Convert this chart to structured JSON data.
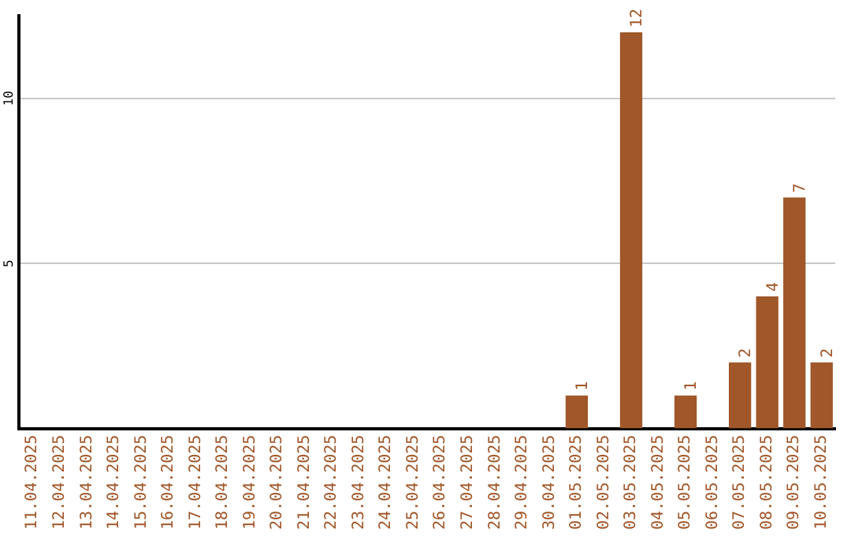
{
  "chart_data": {
    "type": "bar",
    "categories": [
      "11.04.2025",
      "12.04.2025",
      "13.04.2025",
      "14.04.2025",
      "15.04.2025",
      "16.04.2025",
      "17.04.2025",
      "18.04.2025",
      "19.04.2025",
      "20.04.2025",
      "21.04.2025",
      "22.04.2025",
      "23.04.2025",
      "24.04.2025",
      "25.04.2025",
      "26.04.2025",
      "27.04.2025",
      "28.04.2025",
      "29.04.2025",
      "30.04.2025",
      "01.05.2025",
      "02.05.2025",
      "03.05.2025",
      "04.05.2025",
      "05.05.2025",
      "06.05.2025",
      "07.05.2025",
      "08.05.2025",
      "09.05.2025",
      "10.05.2025"
    ],
    "values": [
      0,
      0,
      0,
      0,
      0,
      0,
      0,
      0,
      0,
      0,
      0,
      0,
      0,
      0,
      0,
      0,
      0,
      0,
      0,
      0,
      1,
      0,
      12,
      0,
      1,
      0,
      2,
      4,
      7,
      2
    ],
    "value_labels": [
      null,
      null,
      null,
      null,
      null,
      null,
      null,
      null,
      null,
      null,
      null,
      null,
      null,
      null,
      null,
      null,
      null,
      null,
      null,
      null,
      "1",
      null,
      "12",
      null,
      "1",
      null,
      "2",
      "4",
      "7",
      "2"
    ],
    "color": "#a0572a",
    "ylim": [
      0,
      12.5
    ],
    "yticks": [
      5,
      10
    ],
    "grid": "y",
    "legend": false
  }
}
